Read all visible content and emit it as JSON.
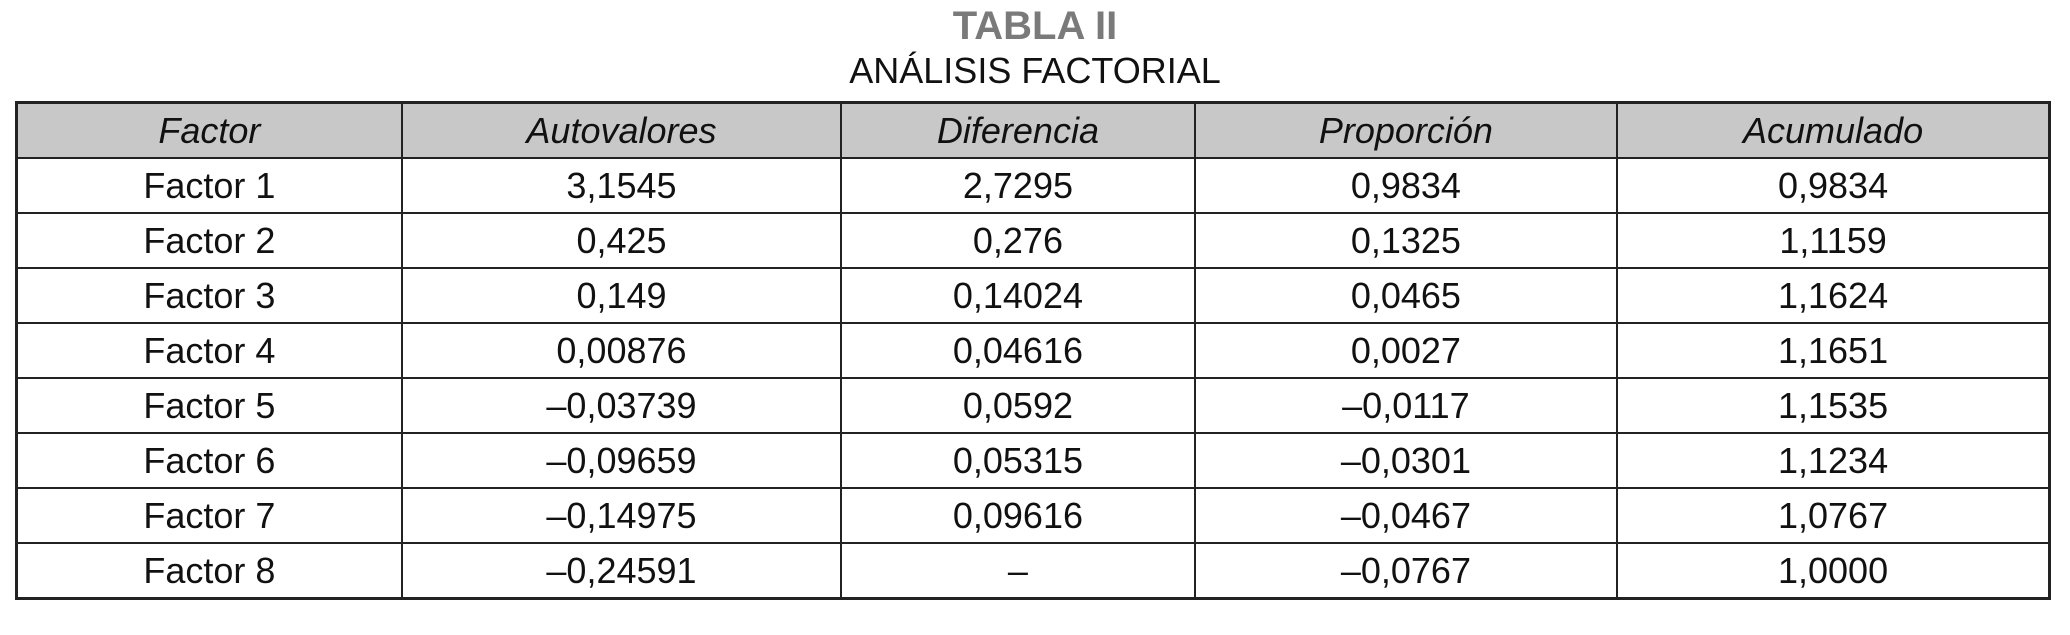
{
  "title": "TABLA II",
  "subtitle": "ANÁLISIS FACTORIAL",
  "table": {
    "headers": [
      "Factor",
      "Autovalores",
      "Diferencia",
      "Proporción",
      "Acumulado"
    ],
    "rows": [
      [
        "Factor 1",
        "3,1545",
        "2,7295",
        "0,9834",
        "0,9834"
      ],
      [
        "Factor 2",
        "0,425",
        "0,276",
        "0,1325",
        "1,1159"
      ],
      [
        "Factor 3",
        "0,149",
        "0,14024",
        "0,0465",
        "1,1624"
      ],
      [
        "Factor 4",
        "0,00876",
        "0,04616",
        "0,0027",
        "1,1651"
      ],
      [
        "Factor 5",
        "–0,03739",
        "0,0592",
        "–0,0117",
        "1,1535"
      ],
      [
        "Factor 6",
        "–0,09659",
        "0,05315",
        "–0,0301",
        "1,1234"
      ],
      [
        "Factor 7",
        "–0,14975",
        "0,09616",
        "–0,0467",
        "1,0767"
      ],
      [
        "Factor 8",
        "–0,24591",
        "–",
        "–0,0767",
        "1,0000"
      ]
    ]
  },
  "colors": {
    "header_bg": "#c8c8c8",
    "title": "#7a7a7a",
    "border": "#222222"
  }
}
